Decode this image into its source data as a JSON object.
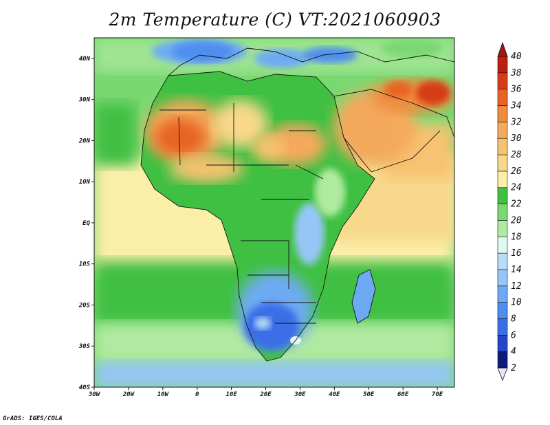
{
  "title": "2m Temperature (C) VT:2021060903",
  "credit": "GrADS: IGES/COLA",
  "map": {
    "lon_range": [
      -30,
      75
    ],
    "lat_range": [
      -40,
      45
    ],
    "lon_ticks": [
      {
        "value": -30,
        "label": "30W"
      },
      {
        "value": -20,
        "label": "20W"
      },
      {
        "value": -10,
        "label": "10W"
      },
      {
        "value": 0,
        "label": "0"
      },
      {
        "value": 10,
        "label": "10E"
      },
      {
        "value": 20,
        "label": "20E"
      },
      {
        "value": 30,
        "label": "30E"
      },
      {
        "value": 40,
        "label": "40E"
      },
      {
        "value": 50,
        "label": "50E"
      },
      {
        "value": 60,
        "label": "60E"
      },
      {
        "value": 70,
        "label": "70E"
      }
    ],
    "lat_ticks": [
      {
        "value": 40,
        "label": "40N"
      },
      {
        "value": 30,
        "label": "30N"
      },
      {
        "value": 20,
        "label": "20N"
      },
      {
        "value": 10,
        "label": "10N"
      },
      {
        "value": 0,
        "label": "EQ"
      },
      {
        "value": -10,
        "label": "10S"
      },
      {
        "value": -20,
        "label": "20S"
      },
      {
        "value": -30,
        "label": "30S"
      },
      {
        "value": -40,
        "label": "40S"
      }
    ]
  },
  "colorbar": {
    "levels": [
      2,
      4,
      6,
      8,
      10,
      12,
      14,
      16,
      18,
      20,
      22,
      24,
      26,
      28,
      30,
      32,
      34,
      36,
      38,
      40
    ],
    "colors": [
      "#0d1c7a",
      "#2546c8",
      "#3a6ee6",
      "#4f8ef0",
      "#6eaaf4",
      "#96c6f6",
      "#b8dcf6",
      "#e2f6f2",
      "#b0eaa0",
      "#7ad872",
      "#40c043",
      "#fbeea8",
      "#f8d88a",
      "#f7c271",
      "#f5a95b",
      "#f08a3e",
      "#e76424",
      "#d63c15",
      "#bb2010",
      "#8a0e0c",
      "#a11614"
    ]
  }
}
